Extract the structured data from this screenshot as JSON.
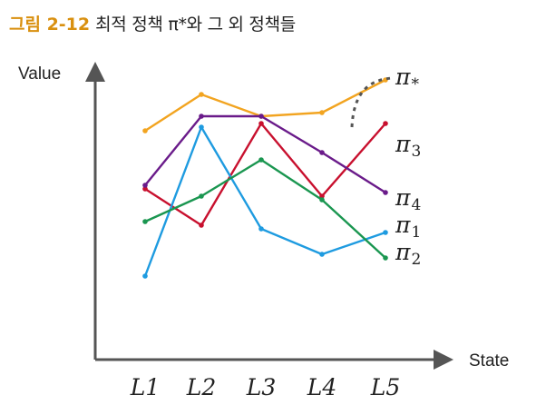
{
  "figure": {
    "number": "그림 2-12",
    "caption": "최적 정책 π*와 그 외 정책들"
  },
  "chart_data": {
    "type": "line",
    "xlabel": "State",
    "ylabel": "Value",
    "categories": [
      "L1",
      "L2",
      "L3",
      "L4",
      "L5"
    ],
    "ylim": [
      0,
      10
    ],
    "grid": false,
    "legend": "labels at line ends (right)",
    "series": [
      {
        "name": "π*",
        "label_base": "π",
        "label_sub": "*",
        "color": "#f2a420",
        "values": [
          7.1,
          8.1,
          7.5,
          7.6,
          8.5
        ]
      },
      {
        "name": "π3",
        "label_base": "π",
        "label_sub": "3",
        "color": "#c8102e",
        "values": [
          5.5,
          4.5,
          7.3,
          5.3,
          7.3
        ]
      },
      {
        "name": "π4",
        "label_base": "π",
        "label_sub": "4",
        "color": "#6a1b8a",
        "values": [
          5.6,
          7.5,
          7.5,
          6.5,
          5.4
        ]
      },
      {
        "name": "π1",
        "label_base": "π",
        "label_sub": "1",
        "color": "#1e9be0",
        "values": [
          3.1,
          7.2,
          4.4,
          3.7,
          4.3
        ]
      },
      {
        "name": "π2",
        "label_base": "π",
        "label_sub": "2",
        "color": "#1a9650",
        "values": [
          4.6,
          5.3,
          6.3,
          5.2,
          3.6
        ]
      }
    ],
    "annotation": {
      "type": "dashed-arc",
      "color": "#555555",
      "points_to": "π*"
    }
  }
}
